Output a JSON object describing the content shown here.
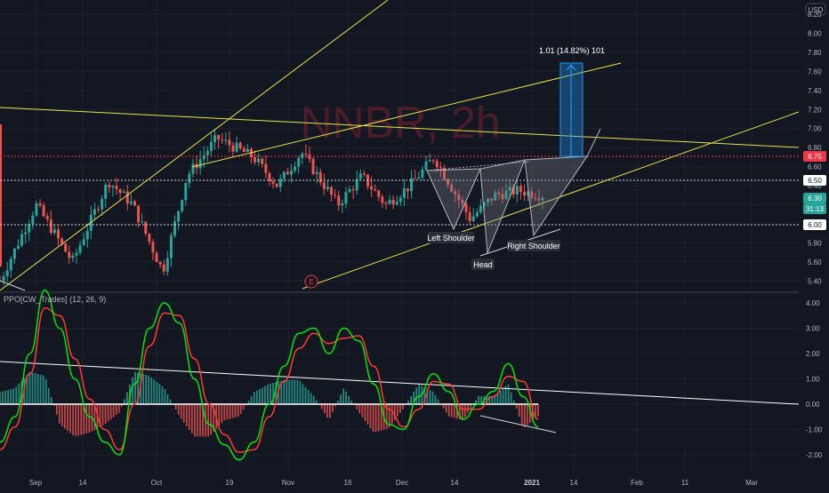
{
  "symbol_watermark": "NNBR, 2h",
  "currency_badge": "USD",
  "indicator_title": "PPO[CW_Trades] (12, 26, 9)",
  "measure_label": "1.01 (14.82%) 101",
  "earnings_marker": "E",
  "pattern_labels": {
    "left_shoulder": "Left Shoulder",
    "head": "Head",
    "right_shoulder": "Right Shoulder"
  },
  "price_badges": [
    {
      "text": "6.75",
      "color": "#f23645"
    },
    {
      "text": "6.50",
      "color": "#ffffff"
    },
    {
      "text": "6.30",
      "color": "#26a69a"
    },
    {
      "text": "31:13",
      "color": "#26a69a"
    },
    {
      "text": "6.00",
      "color": "#ffffff"
    }
  ],
  "colors": {
    "background": "#131722",
    "up_candle": "#26a69a",
    "down_candle": "#ef5350",
    "trendline_yellow": "#e8e34a",
    "ppo_line": "#00e60b",
    "signal_line": "#ff3b30",
    "measure_box": "#2196f3",
    "watermark": "#5a1e2a"
  },
  "chart_data": [
    {
      "type": "candlestick",
      "title": "NNBR, 2h",
      "ylim": [
        5.3,
        8.35
      ],
      "y_ticks": [
        "8.20",
        "8.00",
        "7.80",
        "7.60",
        "7.40",
        "7.20",
        "7.00",
        "6.80",
        "6.60",
        "6.40",
        "6.20",
        "5.80",
        "5.60",
        "5.40"
      ],
      "x_ticks": [
        "Sep",
        "14",
        "Oct",
        "19",
        "Nov",
        "16",
        "Dec",
        "14",
        "2021",
        "14",
        "Feb",
        "11",
        "Mar"
      ],
      "close_path": {
        "x_index": [
          0,
          6,
          12,
          18,
          22,
          27,
          31,
          36,
          42,
          46,
          50,
          56,
          60,
          64,
          68,
          72,
          78,
          82,
          86,
          90
        ],
        "price": [
          5.4,
          6.2,
          5.6,
          6.45,
          6.2,
          5.5,
          6.5,
          6.9,
          6.7,
          6.4,
          6.75,
          6.2,
          6.5,
          6.2,
          6.4,
          6.7,
          6.05,
          6.3,
          6.35,
          6.3
        ]
      },
      "horizontal_levels": [
        6.75,
        6.5,
        6.0
      ],
      "measure_range": {
        "from": 6.75,
        "to": 7.76,
        "change": 1.01,
        "percent": 14.82,
        "bars": 101
      }
    },
    {
      "type": "line",
      "title": "PPO[CW_Trades] (12, 26, 9)",
      "ylim": [
        -2.5,
        4.5
      ],
      "y_ticks": [
        "4.00",
        "3.00",
        "2.00",
        "1.00",
        "0.00",
        "-1.00",
        "-2.00"
      ],
      "series": [
        {
          "name": "PPO",
          "values": [
            -1.5,
            -0.5,
            2.0,
            4.5,
            3.0,
            1.0,
            -0.5,
            -1.5,
            -2.0,
            0.8,
            3.0,
            4.0,
            3.2,
            1.0,
            -0.8,
            -1.6,
            -2.2,
            -1.5,
            0.0,
            1.5,
            2.8,
            3.0,
            2.0,
            3.0,
            2.5,
            0.8,
            -0.8,
            -1.0,
            0.3,
            1.2,
            0.5,
            -0.6,
            0.0,
            0.5,
            1.6,
            0.3,
            -0.9
          ]
        },
        {
          "name": "Signal",
          "values": [
            -1.8,
            -0.9,
            1.2,
            3.8,
            3.5,
            1.8,
            0.2,
            -1.0,
            -1.8,
            0.0,
            2.3,
            3.6,
            3.5,
            1.8,
            0.0,
            -1.2,
            -1.9,
            -1.8,
            -0.5,
            0.9,
            2.2,
            2.8,
            2.4,
            2.6,
            2.7,
            1.5,
            -0.2,
            -0.9,
            -0.2,
            0.9,
            0.8,
            -0.2,
            -0.2,
            0.3,
            1.1,
            0.9,
            -0.6
          ]
        }
      ]
    }
  ]
}
